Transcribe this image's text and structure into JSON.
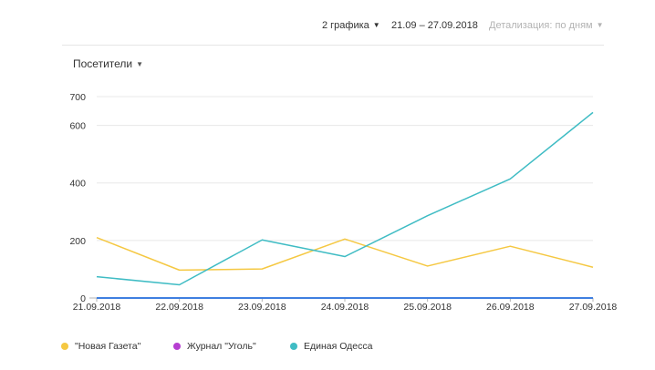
{
  "toolbar": {
    "charts_count": "2 графика",
    "date_range": "21.09 – 27.09.2018",
    "detail": "Детализация: по дням"
  },
  "metric_selector": {
    "label": "Посетители"
  },
  "colors": {
    "Новая Газета": "#f5c842",
    "Журнал Уголь": "#b63fd1",
    "Единая Одесса": "#3fbcc4",
    "baseline": "#3f7fe0"
  },
  "chart_data": {
    "type": "line",
    "x": [
      "21.09.2018",
      "22.09.2018",
      "23.09.2018",
      "24.09.2018",
      "25.09.2018",
      "26.09.2018",
      "27.09.2018"
    ],
    "y_ticks": [
      0,
      200,
      400,
      600,
      700
    ],
    "ylim": [
      0,
      700
    ],
    "grid": true,
    "legend_position": "bottom-left",
    "series": [
      {
        "name": "\"Новая Газета\"",
        "color_key": "Новая Газета",
        "values": [
          210,
          97,
          101,
          205,
          111,
          180,
          107
        ]
      },
      {
        "name": "Журнал \"Уголь\"",
        "color_key": "Журнал Уголь",
        "values": [
          0,
          0,
          0,
          0,
          0,
          0,
          0
        ]
      },
      {
        "name": "Единая Одесса",
        "color_key": "Единая Одесса",
        "values": [
          74,
          46,
          202,
          144,
          286,
          414,
          645
        ]
      }
    ]
  }
}
